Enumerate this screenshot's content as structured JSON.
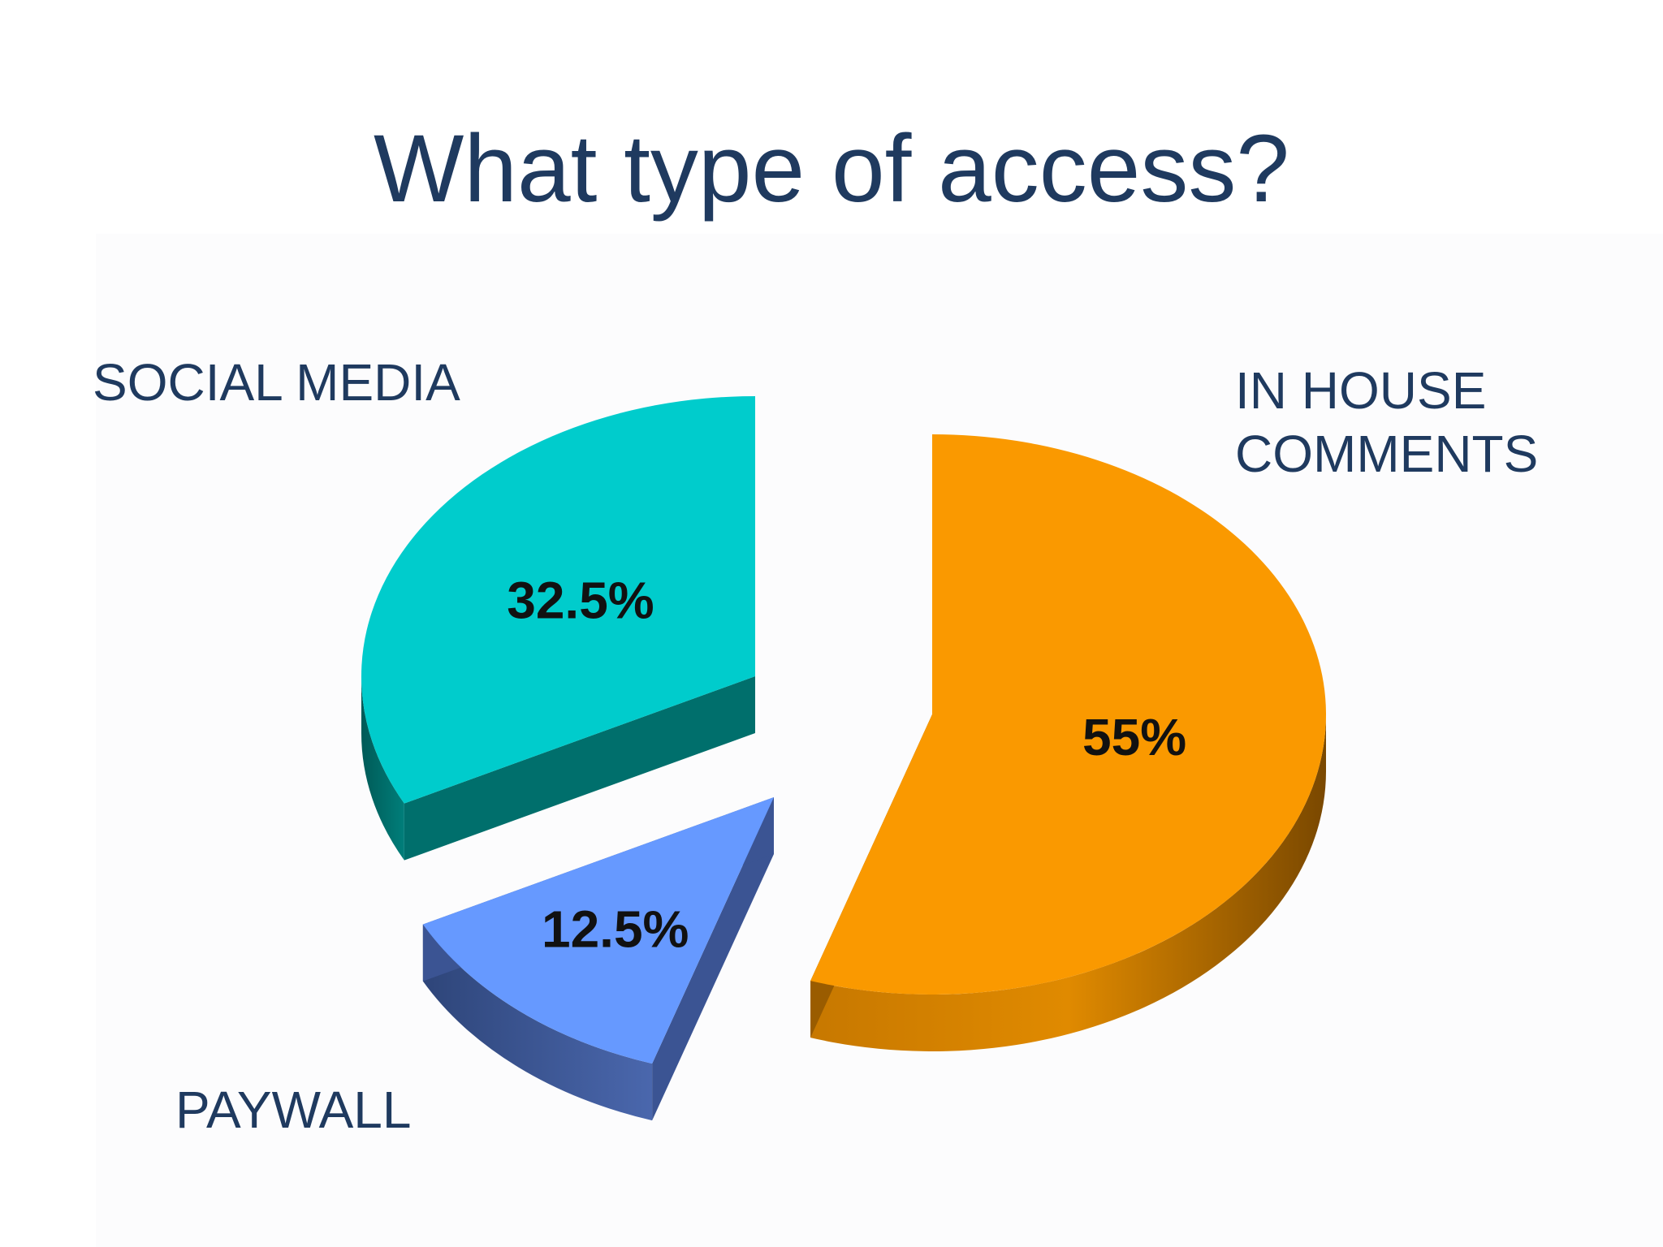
{
  "title": "What type of access?",
  "colors": {
    "title_text": "#1f3a5f",
    "in_house": "#fa9900",
    "social_media": "#00cccc",
    "paywall": "#6699ff"
  },
  "chart_data": {
    "type": "pie",
    "style": "3d-exploded",
    "title": "What type of access?",
    "slices": [
      {
        "label": "IN HOUSE COMMENTS",
        "value": 55,
        "value_label": "55%",
        "color": "#fa9900",
        "side_color": "#9a5c00"
      },
      {
        "label": "PAYWALL",
        "value": 12.5,
        "value_label": "12.5%",
        "color": "#6699ff",
        "side_color": "#3b5493"
      },
      {
        "label": "SOCIAL MEDIA",
        "value": 32.5,
        "value_label": "32.5%",
        "color": "#00cccc",
        "side_color": "#006f6c"
      }
    ],
    "legend": "none",
    "labels": "outside-category, inside-percent"
  }
}
